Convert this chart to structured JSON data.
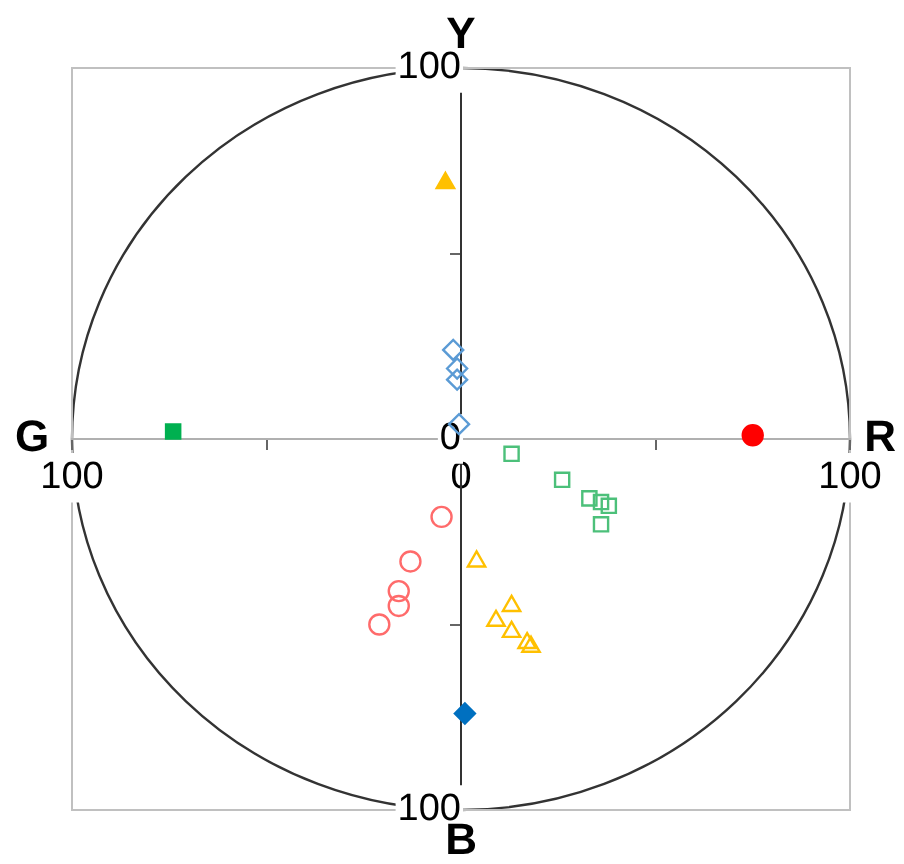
{
  "chart_data": {
    "type": "scatter",
    "xlim": [
      -100,
      100
    ],
    "ylim": [
      -100,
      100
    ],
    "xticks": [
      {
        "value": -100,
        "label": "100"
      },
      {
        "value": -50,
        "label": null
      },
      0,
      {
        "value": 50,
        "label": null
      },
      100
    ],
    "yticks": [
      {
        "value": -100,
        "label": "100"
      },
      {
        "value": -50,
        "label": null
      },
      0,
      {
        "value": 50,
        "label": null
      },
      100
    ],
    "grid": false,
    "legend": false,
    "annotations": [
      "G",
      "R",
      "Y",
      "B"
    ],
    "series": [
      {
        "color": "#ff0000",
        "marker": "circle",
        "x": [
          75
        ],
        "values": [
          1
        ]
      },
      {
        "color": "#00b050",
        "marker": "square",
        "x": [
          -74
        ],
        "values": [
          2
        ]
      },
      {
        "color": "#ffc000",
        "marker": "triangle",
        "x": [
          -4
        ],
        "values": [
          69
        ]
      },
      {
        "color": "#0070c0",
        "marker": "diamond",
        "x": [
          1
        ],
        "values": [
          -74
        ]
      },
      {
        "color": "#5b9bd5",
        "marker": "diamond",
        "x": [
          -2,
          -1,
          -1,
          -0.5
        ],
        "values": [
          24,
          19,
          16,
          4
        ]
      },
      {
        "color": "#4cc07a",
        "marker": "square",
        "x": [
          13,
          26,
          33,
          36,
          38,
          36
        ],
        "values": [
          -4,
          -11,
          -16,
          -17,
          -18,
          -23
        ]
      },
      {
        "color": "#ff6b6b",
        "marker": "circle",
        "x": [
          -5,
          -13,
          -16,
          -16,
          -21
        ],
        "values": [
          -21,
          -33,
          -41,
          -45,
          -50
        ]
      },
      {
        "color": "#ffc000",
        "marker": "triangle",
        "x": [
          4,
          13,
          9,
          13,
          17,
          18
        ],
        "values": [
          -33,
          -45,
          -49,
          -52,
          -55,
          -56
        ]
      }
    ]
  }
}
